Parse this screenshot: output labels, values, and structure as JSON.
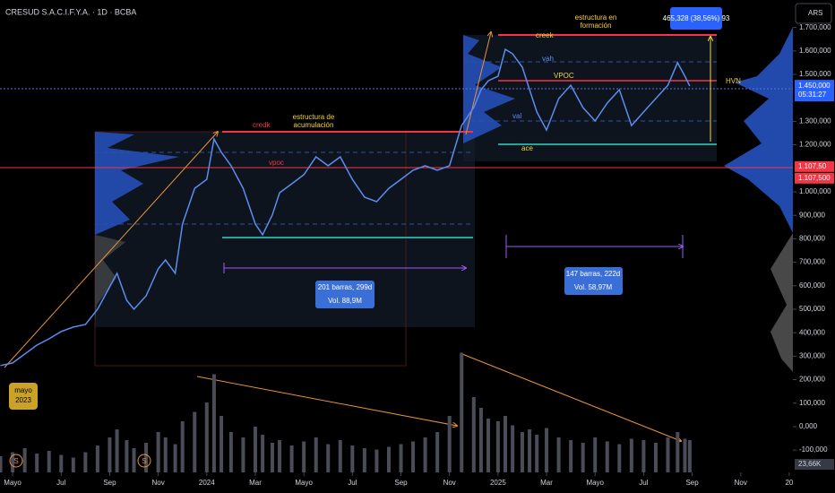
{
  "chart_data": {
    "type": "line",
    "title": "CRESUD S.A.C.I.F.Y.A. · 1D · BCBA",
    "currency": "ARS",
    "x": [
      3.5,
      4,
      4.5,
      5,
      5.5,
      6,
      6.5,
      7,
      7.5,
      8,
      8.3,
      8.7,
      9,
      9.5,
      10,
      10.3,
      10.7,
      11,
      11.5,
      12,
      12.3,
      12.6,
      13,
      13.5,
      14,
      14.3,
      14.7,
      15,
      15.5,
      16,
      16.5,
      17,
      17.5,
      18,
      18.5,
      19,
      19.5,
      20,
      20.5,
      21,
      21.5,
      22,
      22.5,
      23,
      23.3,
      23.6,
      24,
      24.3,
      24.6,
      25,
      25.3,
      25.6,
      26,
      26.5,
      27,
      27.5,
      28,
      28.5,
      29,
      29.5,
      30,
      30.5,
      31,
      31.4,
      31.7,
      31.9
    ],
    "values": [
      260000,
      271000,
      309000,
      347000,
      374000,
      405000,
      424000,
      435000,
      500000,
      595000,
      653000,
      538000,
      500000,
      557000,
      672000,
      710000,
      653000,
      863000,
      1015000,
      1053000,
      1225000,
      1168000,
      1111000,
      1015000,
      863000,
      817000,
      901000,
      996000,
      1034000,
      1073000,
      1149000,
      1111000,
      1149000,
      1053000,
      977000,
      958000,
      1015000,
      1053000,
      1092000,
      1111000,
      1092000,
      1111000,
      1282000,
      1359000,
      1435000,
      1473000,
      1492000,
      1607000,
      1588000,
      1531000,
      1435000,
      1340000,
      1263000,
      1397000,
      1454000,
      1359000,
      1302000,
      1378000,
      1435000,
      1282000,
      1340000,
      1397000,
      1454000,
      1550000,
      1492000,
      1450000
    ],
    "color": "#5b8def",
    "volume_values": [
      120,
      150,
      180,
      140,
      160,
      130,
      110,
      150,
      200,
      260,
      320,
      240,
      180,
      220,
      300,
      260,
      210,
      380,
      450,
      520,
      730,
      420,
      300,
      260,
      340,
      280,
      220,
      240,
      200,
      230,
      260,
      210,
      240,
      200,
      180,
      170,
      190,
      210,
      230,
      260,
      300,
      420,
      890,
      560,
      480,
      400,
      380,
      420,
      350,
      300,
      320,
      280,
      330,
      260,
      240,
      220,
      260,
      230,
      210,
      250,
      240,
      220,
      260,
      300,
      250,
      240
    ],
    "volume_color": "#4a4d57",
    "y2lim": [
      0,
      1000
    ],
    "current_volume": {
      "value": 23.66,
      "label": "23,66K"
    },
    "xlim": [
      3.48,
      36.15
    ],
    "xticks": [
      {
        "value": 4,
        "label": "Mayo"
      },
      {
        "value": 6,
        "label": "Jul"
      },
      {
        "value": 8,
        "label": "Sep"
      },
      {
        "value": 10,
        "label": "Nov"
      },
      {
        "value": 12,
        "label": "2024"
      },
      {
        "value": 14,
        "label": "Mar"
      },
      {
        "value": 16,
        "label": "Mayo"
      },
      {
        "value": 18,
        "label": "Jul"
      },
      {
        "value": 20,
        "label": "Sep"
      },
      {
        "value": 22,
        "label": "Nov"
      },
      {
        "value": 24,
        "label": "2025"
      },
      {
        "value": 26,
        "label": "Mar"
      },
      {
        "value": 28,
        "label": "Mayo"
      },
      {
        "value": 30,
        "label": "Jul"
      },
      {
        "value": 32,
        "label": "Sep"
      },
      {
        "value": 34,
        "label": "Nov"
      },
      {
        "value": 36,
        "label": "20"
      }
    ],
    "ylim": [
      -195000,
      1817000
    ],
    "yticks": [
      {
        "value": 1700000,
        "label": "1.700,000"
      },
      {
        "value": 1600000,
        "label": "1.600,000"
      },
      {
        "value": 1500000,
        "label": "1.500,000"
      },
      {
        "value": 1300000,
        "label": "1.300,000"
      },
      {
        "value": 1200000,
        "label": "1.200,000"
      },
      {
        "value": 1000000,
        "label": "1.000,000"
      },
      {
        "value": 900000,
        "label": "900,000"
      },
      {
        "value": 800000,
        "label": "800,000"
      },
      {
        "value": 700000,
        "label": "700,000"
      },
      {
        "value": 600000,
        "label": "600,000"
      },
      {
        "value": 500000,
        "label": "500,000"
      },
      {
        "value": 400000,
        "label": "400,000"
      },
      {
        "value": 300000,
        "label": "300,000"
      },
      {
        "value": 200000,
        "label": "200,000"
      },
      {
        "value": 100000,
        "label": "100,000"
      },
      {
        "value": 0,
        "label": "0,000"
      },
      {
        "value": -100000,
        "label": "-100,000"
      }
    ],
    "last_price": {
      "value": 1450000,
      "label": "1.450,000",
      "countdown": "05:31:27"
    },
    "level": {
      "value": 1107500,
      "labels": [
        "1.107,50",
        "1.107,500"
      ]
    },
    "annotations": {
      "badge": [
        "mayo",
        "2023"
      ],
      "event_icon": "S",
      "credk": "credk",
      "structure1": [
        "estructura de",
        "acumulación"
      ],
      "vpoc1": "vpoc",
      "measure1": [
        "201 barras, 299d",
        "Vol. 88,9M"
      ],
      "structure2": [
        "estructura en",
        "formación"
      ],
      "creek": "creek",
      "vah": "vah",
      "vpoc2": "VPOC",
      "val": "val",
      "ace": "ace",
      "measure2": [
        "147 barras, 222d",
        "Vol. 58,97M"
      ],
      "hvn": "HVN",
      "range": "465,328 (38,56%) 93"
    }
  }
}
